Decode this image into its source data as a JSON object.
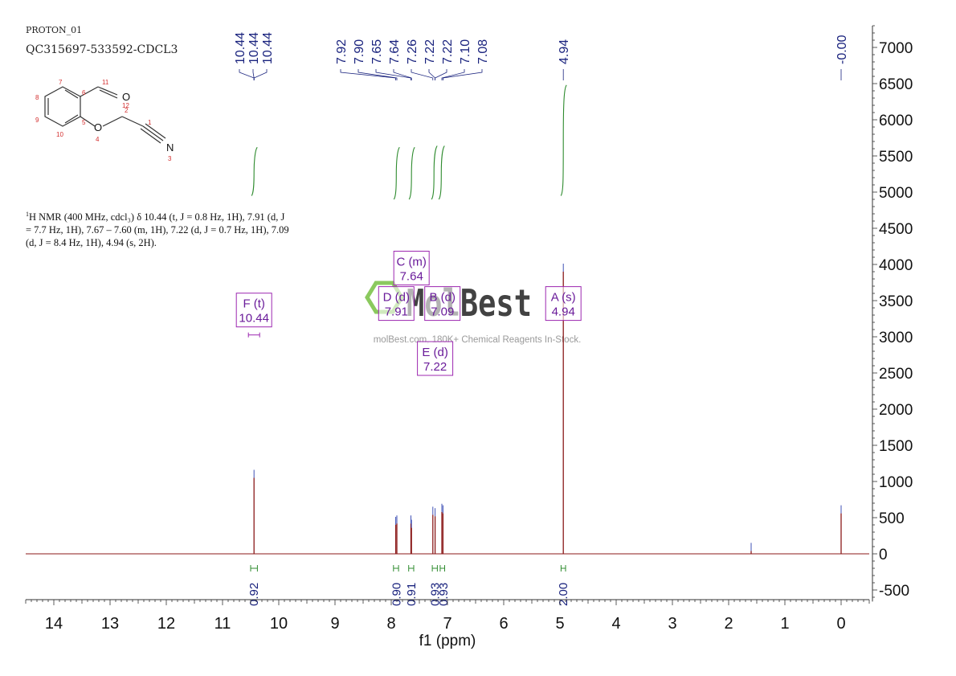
{
  "header": {
    "experiment": "PROTON_01",
    "sample": "QC315697-533592-CDCL3"
  },
  "summary": {
    "nucleus_sup": "1",
    "lines": [
      "H NMR (400 MHz, cdcl₃) δ 10.44 (t, J = 0.8 Hz, 1H), 7.91 (d, J",
      "= 7.7 Hz, 1H), 7.67 – 7.60 (m, 1H), 7.22 (d, J = 0.7 Hz, 1H), 7.09",
      "(d, J = 8.4 Hz, 1H), 4.94 (s, 2H)."
    ]
  },
  "watermark": {
    "brand": "MolBest",
    "tagline": "molBest.com, 180K+ Chemical Reagents In-Stock."
  },
  "structure": {
    "atom_numbers": [
      "1",
      "2",
      "3",
      "4",
      "5",
      "6",
      "7",
      "8",
      "9",
      "10",
      "11",
      "12"
    ],
    "atom_symbols": [
      "O",
      "O",
      "N"
    ]
  },
  "colors": {
    "spectrum": "#8b1a1a",
    "integral": "#2e8b2e",
    "peak_label": "#1a237e",
    "multiplet_box": "#9c27b0",
    "multiplet_text": "#6a1b9a",
    "axis": "#333333",
    "watermark": "#77c043"
  },
  "chart_data": {
    "type": "line",
    "title": "",
    "xlabel": "f1 (ppm)",
    "ylabel": "",
    "xlim": [
      14.5,
      -0.5
    ],
    "ylim": [
      -600,
      7300
    ],
    "x_reversed": true,
    "x_ticks": [
      14,
      13,
      12,
      11,
      10,
      9,
      8,
      7,
      6,
      5,
      4,
      3,
      2,
      1,
      0
    ],
    "y_ticks": [
      7000,
      6500,
      6000,
      5500,
      5000,
      4500,
      4000,
      3500,
      3000,
      2500,
      2000,
      1500,
      1000,
      500,
      0,
      -500
    ],
    "y_axis_position": "right",
    "grid": false,
    "peaks": [
      {
        "ppm": 10.44,
        "height": 1050
      },
      {
        "ppm": 7.92,
        "height": 400
      },
      {
        "ppm": 7.9,
        "height": 420
      },
      {
        "ppm": 7.65,
        "height": 420
      },
      {
        "ppm": 7.64,
        "height": 360
      },
      {
        "ppm": 7.26,
        "height": 540
      },
      {
        "ppm": 7.22,
        "height": 520
      },
      {
        "ppm": 7.1,
        "height": 580
      },
      {
        "ppm": 7.08,
        "height": 560
      },
      {
        "ppm": 4.94,
        "height": 3900
      },
      {
        "ppm": 1.6,
        "height": 40
      },
      {
        "ppm": 0.0,
        "height": 560
      }
    ],
    "peak_labels": {
      "groups": [
        {
          "labels": [
            "10.44",
            "10.44",
            "10.44"
          ],
          "target_ppm": 10.44
        },
        {
          "labels": [
            "7.92",
            "7.90",
            "7.65",
            "7.64",
            "7.26",
            "7.22",
            "7.22",
            "7.10",
            "7.08"
          ],
          "target_ppms": [
            7.92,
            7.9,
            7.65,
            7.64,
            7.26,
            7.22,
            7.22,
            7.1,
            7.08
          ]
        },
        {
          "labels": [
            "4.94"
          ],
          "target_ppm": 4.94
        },
        {
          "labels": [
            "-0.00"
          ],
          "target_ppm": 0.0
        }
      ]
    },
    "integrals": [
      {
        "ppm_from": 10.5,
        "ppm_to": 10.38,
        "value": "0.92",
        "label_ppm": 10.44,
        "curve_ppm": 10.44,
        "curve_top": 5620,
        "curve_bottom": 4950
      },
      {
        "ppm_from": 7.96,
        "ppm_to": 7.87,
        "value": "0.90",
        "label_ppm": 7.91,
        "curve_ppm": 7.91,
        "curve_top": 5620,
        "curve_bottom": 4900
      },
      {
        "ppm_from": 7.69,
        "ppm_to": 7.6,
        "value": "0.91",
        "label_ppm": 7.64,
        "curve_ppm": 7.64,
        "curve_top": 5620,
        "curve_bottom": 4900
      },
      {
        "ppm_from": 7.27,
        "ppm_to": 7.18,
        "value": "0.93",
        "label_ppm": 7.22,
        "curve_ppm": 7.24,
        "curve_top": 5640,
        "curve_bottom": 4900
      },
      {
        "ppm_from": 7.13,
        "ppm_to": 7.05,
        "value": "0.93",
        "label_ppm": 7.07,
        "curve_ppm": 7.11,
        "curve_top": 5640,
        "curve_bottom": 4900
      },
      {
        "ppm_from": 4.98,
        "ppm_to": 4.9,
        "value": "2.00",
        "label_ppm": 4.94,
        "curve_ppm": 4.94,
        "curve_top": 6480,
        "curve_bottom": 4950
      }
    ],
    "multiplets": [
      {
        "letter": "F (t)",
        "shift": "10.44",
        "ppm": 10.44,
        "level": 3370,
        "range": [
          10.54,
          10.34
        ]
      },
      {
        "letter": "C (m)",
        "shift": "7.64",
        "ppm": 7.64,
        "level": 3950
      },
      {
        "letter": "D (d)",
        "shift": "7.91",
        "ppm": 7.91,
        "level": 3460
      },
      {
        "letter": "B (d)",
        "shift": "7.09",
        "ppm": 7.09,
        "level": 3460
      },
      {
        "letter": "E (d)",
        "shift": "7.22",
        "ppm": 7.22,
        "level": 2700
      },
      {
        "letter": "A (s)",
        "shift": "4.94",
        "ppm": 4.94,
        "level": 3460
      }
    ]
  }
}
